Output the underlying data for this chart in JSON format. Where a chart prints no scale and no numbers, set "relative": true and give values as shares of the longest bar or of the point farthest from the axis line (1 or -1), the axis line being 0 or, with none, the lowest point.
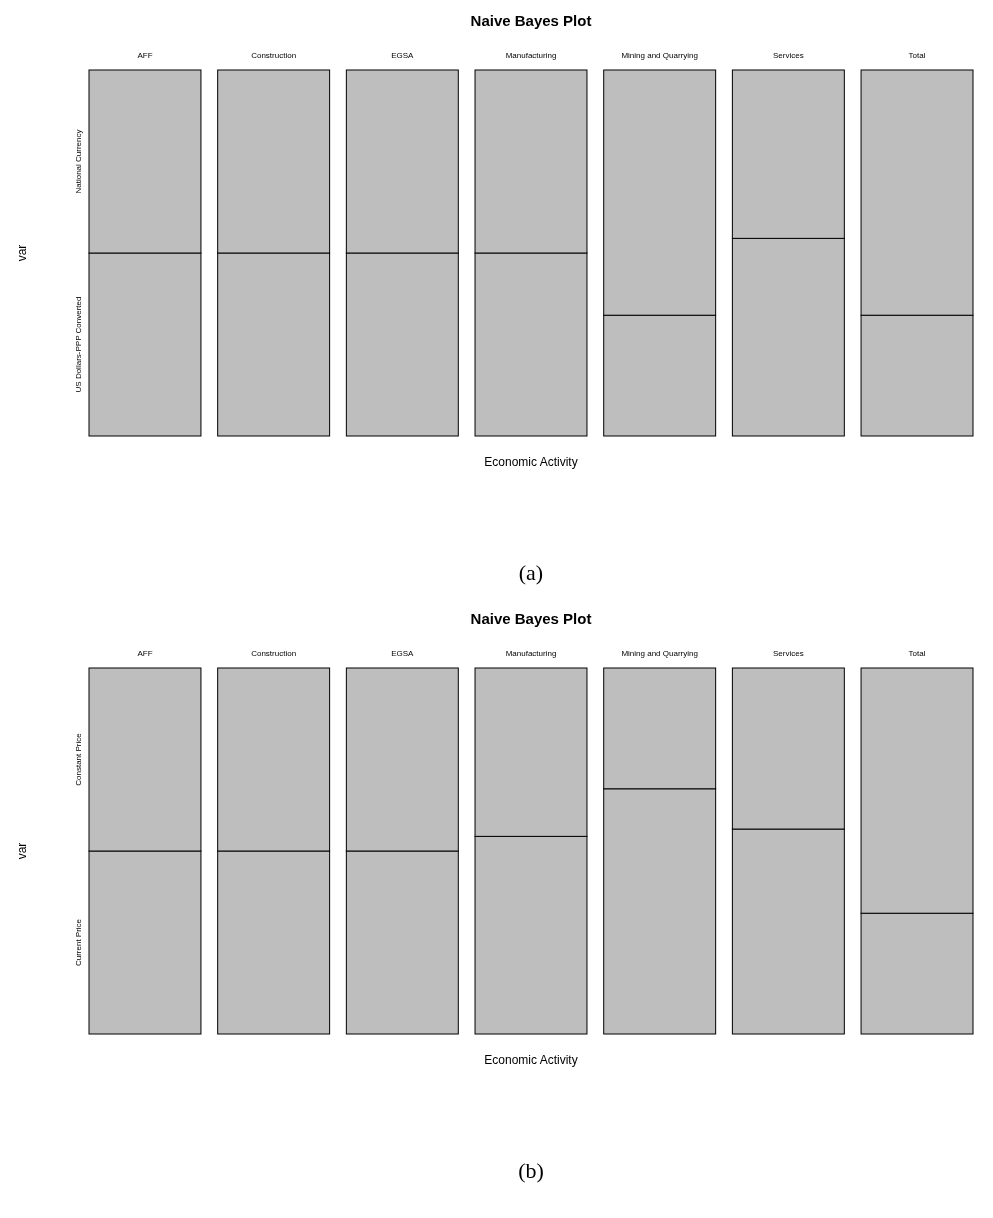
{
  "chart_data": [
    {
      "type": "bar",
      "title": "Naive Bayes Plot",
      "xlabel": "Economic Activity",
      "ylabel": "var",
      "stacked": true,
      "relative": true,
      "legend": false,
      "categories": [
        "AFF",
        "Construction",
        "EGSA",
        "Manufacturing",
        "Mining and Quarrying",
        "Services",
        "Total"
      ],
      "series": [
        {
          "name": "US Dollars-PPP Converted",
          "color": "#bebebe",
          "values": [
            0.5,
            0.5,
            0.5,
            0.5,
            0.33,
            0.54,
            0.33
          ]
        },
        {
          "name": "National Currency",
          "color": "#bebebe",
          "values": [
            0.5,
            0.5,
            0.5,
            0.5,
            0.67,
            0.46,
            0.67
          ]
        }
      ],
      "annotations": [
        "(a)"
      ]
    },
    {
      "type": "bar",
      "title": "Naive Bayes Plot",
      "xlabel": "Economic Activity",
      "ylabel": "var",
      "stacked": true,
      "relative": true,
      "legend": false,
      "categories": [
        "AFF",
        "Construction",
        "EGSA",
        "Manufacturing",
        "Mining and Quarrying",
        "Services",
        "Total"
      ],
      "series": [
        {
          "name": "Current Price",
          "color": "#bebebe",
          "values": [
            0.5,
            0.5,
            0.5,
            0.54,
            0.67,
            0.56,
            0.33
          ]
        },
        {
          "name": "Constant Price",
          "color": "#bebebe",
          "values": [
            0.5,
            0.5,
            0.5,
            0.46,
            0.33,
            0.44,
            0.67
          ]
        }
      ],
      "annotations": [
        "(b)"
      ]
    }
  ]
}
